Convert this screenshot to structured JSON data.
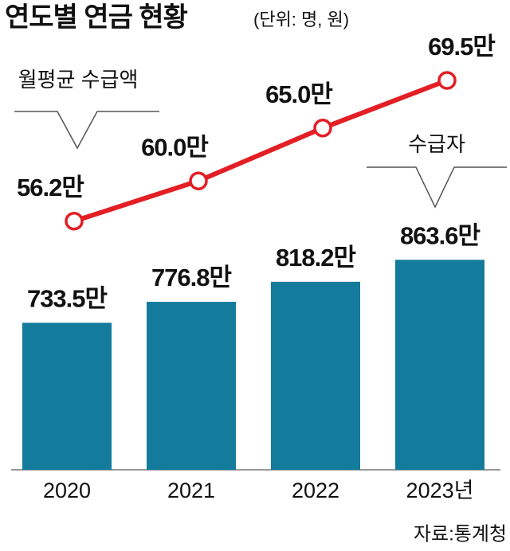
{
  "chart_data": {
    "type": "bar_line",
    "title": "연도별 연금 현황",
    "subtitle": "(단위: 명, 원)",
    "annotations": [
      "월평균 수급액",
      "수급자"
    ],
    "source": "자료:통계청",
    "categories": [
      "2020",
      "2021",
      "2022",
      "2023년"
    ],
    "series": [
      {
        "name": "수급자",
        "type": "bar",
        "color": "#137b9b",
        "values": [
          733.5,
          776.8,
          818.2,
          863.6
        ],
        "value_labels": [
          "733.5만",
          "776.8만",
          "818.2만",
          "863.6만"
        ]
      },
      {
        "name": "월평균 수급액",
        "type": "line",
        "axis": "y2",
        "color": "#e31e24",
        "values": [
          56.2,
          60.0,
          65.0,
          69.5
        ],
        "value_labels": [
          "56.2만",
          "60.0만",
          "65.0만",
          "69.5만"
        ]
      }
    ],
    "ylim": [
      430,
      1400
    ],
    "y2lim": [
      32.7,
      77.1
    ]
  }
}
